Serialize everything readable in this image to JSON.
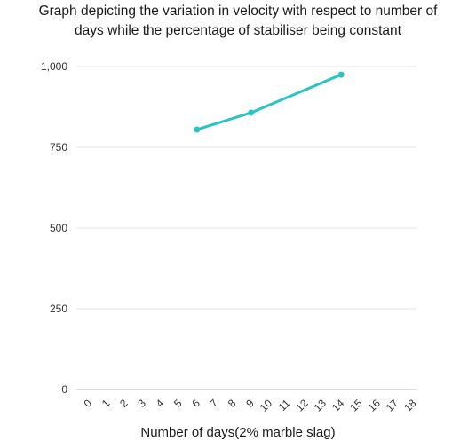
{
  "chart_data": {
    "type": "line",
    "title_line1": "Graph depicting the variation in velocity with respect to number of",
    "title_line2": "days while the percentage of stabiliser being constant",
    "xlabel": "Number of days(2% marble slag)",
    "ylabel": "",
    "x_ticks": [
      "0",
      "1",
      "2",
      "3",
      "4",
      "5",
      "6",
      "7",
      "8",
      "9",
      "10",
      "11",
      "12",
      "13",
      "14",
      "15",
      "16",
      "17",
      "18"
    ],
    "y_ticks": [
      "0",
      "250",
      "500",
      "750",
      "1,000"
    ],
    "ylim": [
      0,
      1000
    ],
    "series": [
      {
        "x": [
          6,
          9,
          14
        ],
        "y": [
          805,
          857,
          975
        ],
        "color": "#2ac4c4"
      }
    ],
    "grid": true,
    "legend": "none"
  }
}
